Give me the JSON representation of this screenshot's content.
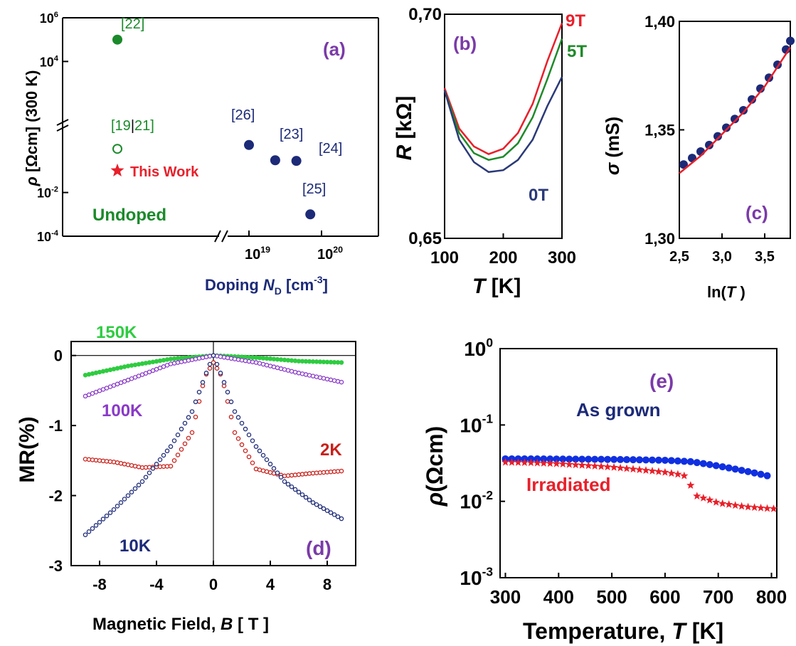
{
  "chart_data": [
    {
      "panel": "(a)",
      "type": "scatter",
      "ylabel_sym": "ρ",
      "ylabel_rest": " [Ωcm] (300 K)",
      "xlabel_main": "Doping ",
      "xlabel_sym": "N",
      "xlabel_sub": "D",
      "xlabel_unit": " [cm",
      "xlabel_exp": "-3",
      "xlabel_end": "]",
      "yscale": "log",
      "ylim_exp": [
        -4,
        6
      ],
      "yticks": [
        {
          "b": "10",
          "e": "6"
        },
        {
          "b": "10",
          "e": "4"
        },
        {
          "b": "10",
          "e": "-2"
        },
        {
          "b": "10",
          "e": "-4"
        }
      ],
      "xscale": "log",
      "xticks": [
        {
          "b": "10",
          "e": "19"
        },
        {
          "b": "10",
          "e": "20"
        }
      ],
      "undoped_label": "Undoped",
      "points": [
        {
          "label": "[22]",
          "group": "undoped",
          "x": "undoped",
          "y": 100000,
          "style": "filled",
          "color": "#1a8a2a"
        },
        {
          "label": "[19]",
          "group": "undoped",
          "x": "undoped",
          "y": 1.0,
          "style": "open",
          "color": "#1a8a2a"
        },
        {
          "label": "This Work",
          "group": "undoped",
          "x": "undoped",
          "y": 0.1,
          "style": "star",
          "color": "#e8202a"
        },
        {
          "label": "[26]",
          "group": "doped",
          "x": 1e+19,
          "y": 1.5,
          "style": "filled",
          "color": "#1c2a78"
        },
        {
          "label": "[23]",
          "group": "doped",
          "x": 2.3e+19,
          "y": 0.3,
          "style": "filled",
          "color": "#1c2a78"
        },
        {
          "label": "[24]",
          "group": "doped",
          "x": 4.5e+19,
          "y": 0.28,
          "style": "filled",
          "color": "#1c2a78"
        },
        {
          "label": "[25]",
          "group": "doped",
          "x": 7e+19,
          "y": 0.001,
          "style": "filled",
          "color": "#1c2a78"
        }
      ],
      "ref_pair": {
        "a": "[19",
        "sep": "|",
        "b": "21]"
      }
    },
    {
      "panel": "(b)",
      "type": "line",
      "ylabel_sym": "R",
      "ylabel_rest": " [kΩ]",
      "xlabel_sym": "T",
      "xlabel_rest": " [K]",
      "xlim": [
        100,
        300
      ],
      "ylim": [
        0.65,
        0.7
      ],
      "xticks": [
        "100",
        "200",
        "300"
      ],
      "yticks": [
        "0,65",
        "0,70"
      ],
      "series": [
        {
          "name": "9T",
          "color": "#e8202a",
          "x": [
            100,
            125,
            150,
            175,
            200,
            225,
            250,
            275,
            300
          ],
          "y": [
            0.6835,
            0.6745,
            0.6705,
            0.6688,
            0.67,
            0.6735,
            0.68,
            0.6895,
            0.698
          ]
        },
        {
          "name": "5T",
          "color": "#1f8a2a",
          "x": [
            100,
            125,
            150,
            175,
            200,
            225,
            250,
            275,
            300
          ],
          "y": [
            0.683,
            0.6735,
            0.669,
            0.6675,
            0.6682,
            0.6712,
            0.677,
            0.6855,
            0.6945
          ]
        },
        {
          "name": "0T",
          "color": "#2a3a78",
          "x": [
            100,
            125,
            150,
            175,
            200,
            225,
            250,
            275,
            300
          ],
          "y": [
            0.683,
            0.672,
            0.667,
            0.6648,
            0.6652,
            0.6675,
            0.672,
            0.6795,
            0.686
          ]
        }
      ]
    },
    {
      "panel": "(c)",
      "type": "scatter",
      "ylabel_sym": "σ",
      "ylabel_rest": " (mS)",
      "xlabel_main": "ln(",
      "xlabel_sym": "T",
      "xlabel_end": " )",
      "xlim": [
        2.5,
        3.8
      ],
      "ylim": [
        1.3,
        1.4
      ],
      "xticks": [
        "2,5",
        "3,0",
        "3,5"
      ],
      "yticks": [
        "1,30",
        "1,35",
        "1,40"
      ],
      "data_color": "#1c2a78",
      "fit_color": "#e8202a",
      "data": {
        "x": [
          2.55,
          2.65,
          2.75,
          2.85,
          2.95,
          3.05,
          3.15,
          3.25,
          3.35,
          3.45,
          3.55,
          3.65,
          3.75,
          3.8
        ],
        "y": [
          1.334,
          1.337,
          1.34,
          1.343,
          1.347,
          1.351,
          1.355,
          1.359,
          1.364,
          1.369,
          1.374,
          1.38,
          1.387,
          1.391
        ]
      },
      "fit": {
        "x": [
          2.5,
          2.75,
          3.0,
          3.25,
          3.5,
          3.8
        ],
        "y": [
          1.33,
          1.338,
          1.348,
          1.358,
          1.37,
          1.388
        ]
      }
    },
    {
      "panel": "(d)",
      "type": "scatter",
      "ylabel": "MR(%)",
      "xlabel_main": "Magnetic Field, ",
      "xlabel_sym": "B",
      "xlabel_rest": " [ T ]",
      "xlim": [
        -10,
        10
      ],
      "ylim": [
        -3,
        0.2
      ],
      "xticks": [
        "-8",
        "-4",
        "0",
        "4",
        "8"
      ],
      "yticks": [
        "0",
        "-1",
        "-2",
        "-3"
      ],
      "series": [
        {
          "name": "150K",
          "color": "#2ecc40",
          "x": [
            -9,
            -6,
            -3,
            0,
            3,
            6,
            9
          ],
          "y": [
            -0.28,
            -0.15,
            -0.05,
            0,
            -0.03,
            -0.08,
            -0.1
          ]
        },
        {
          "name": "100K",
          "color": "#8a3ac8",
          "x": [
            -9,
            -6,
            -3,
            0,
            3,
            6,
            9
          ],
          "y": [
            -0.58,
            -0.35,
            -0.12,
            0,
            -0.1,
            -0.25,
            -0.38
          ]
        },
        {
          "name": "2K",
          "color": "#c8201a",
          "x": [
            -9,
            -7,
            -5,
            -3,
            -1.5,
            -0.6,
            0,
            0.6,
            1.5,
            3,
            5,
            7,
            9
          ],
          "y": [
            -1.48,
            -1.52,
            -1.6,
            -1.58,
            -1.1,
            -0.3,
            -0.1,
            -0.3,
            -1.1,
            -1.62,
            -1.72,
            -1.68,
            -1.65
          ]
        },
        {
          "name": "10K",
          "color": "#1c2a78",
          "x": [
            -9,
            -7,
            -5,
            -3,
            -1.5,
            -0.6,
            0,
            0.6,
            1.5,
            3,
            5,
            7,
            9
          ],
          "y": [
            -2.56,
            -2.2,
            -1.8,
            -1.3,
            -0.8,
            -0.3,
            0,
            -0.3,
            -0.8,
            -1.3,
            -1.8,
            -2.1,
            -2.33
          ]
        }
      ]
    },
    {
      "panel": "(e)",
      "type": "scatter",
      "ylabel_sym": "ρ",
      "ylabel_rest": "(Ωcm)",
      "xlabel_main": "Temperature, ",
      "xlabel_sym": "T",
      "xlabel_rest": " [K]",
      "yscale": "log",
      "xlim": [
        290,
        810
      ],
      "ylim_exp": [
        -3,
        0
      ],
      "xticks": [
        "300",
        "400",
        "500",
        "600",
        "700",
        "800"
      ],
      "yticks": [
        {
          "b": "10",
          "e": "0"
        },
        {
          "b": "10",
          "e": "-1"
        },
        {
          "b": "10",
          "e": "-2"
        },
        {
          "b": "10",
          "e": "-3"
        }
      ],
      "series": [
        {
          "name": "As grown",
          "color": "#1030e0",
          "marker": "circle",
          "x": [
            300,
            350,
            400,
            450,
            500,
            550,
            600,
            650,
            700,
            750,
            800
          ],
          "y": [
            0.036,
            0.036,
            0.0358,
            0.0356,
            0.0354,
            0.035,
            0.0345,
            0.033,
            0.029,
            0.025,
            0.021
          ]
        },
        {
          "name": "Irradiated",
          "color": "#e8202a",
          "marker": "star",
          "x": [
            300,
            350,
            400,
            450,
            500,
            550,
            600,
            635,
            645,
            655,
            700,
            750,
            800,
            812
          ],
          "y": [
            0.0325,
            0.032,
            0.031,
            0.0295,
            0.028,
            0.026,
            0.024,
            0.022,
            0.018,
            0.012,
            0.0095,
            0.0085,
            0.008,
            0.008
          ]
        }
      ]
    }
  ]
}
